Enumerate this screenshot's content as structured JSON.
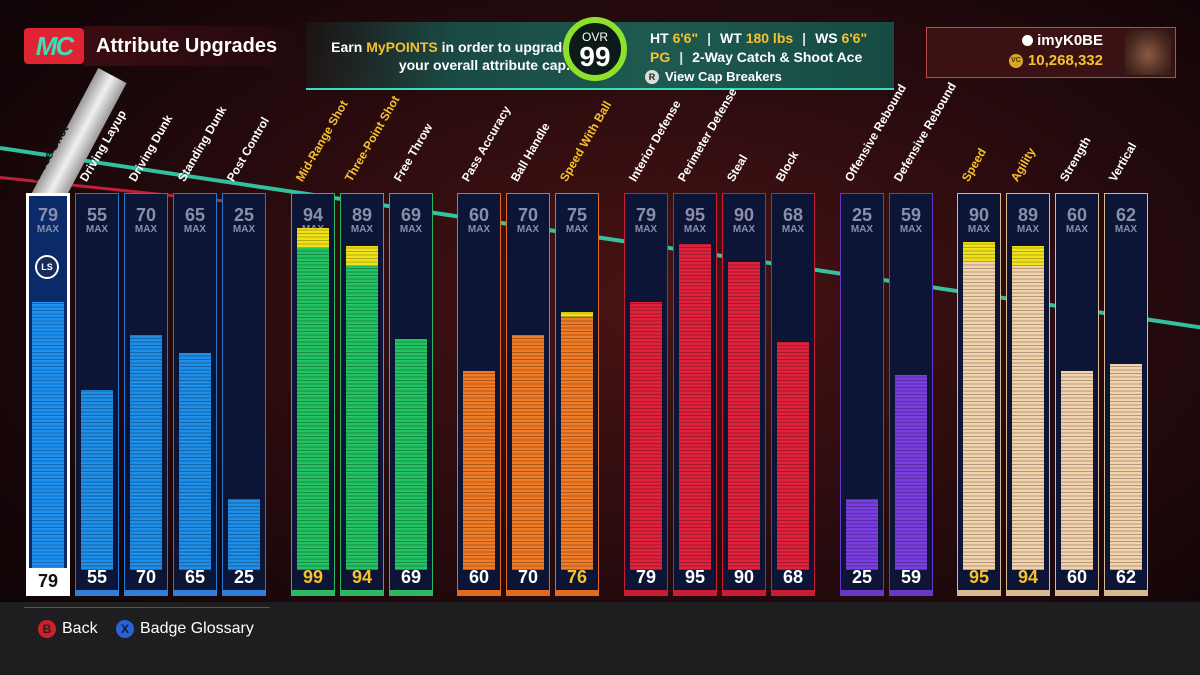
{
  "header": {
    "logo_text": "MC",
    "title": "Attribute Upgrades",
    "earn_line1_prefix": "Earn ",
    "earn_line1_highlight": "MyPOINTS",
    "earn_line1_suffix": " in order to upgrade",
    "earn_line2": "your overall attribute cap.",
    "ovr_label": "OVR",
    "ovr_value": "99",
    "ht_label": "HT",
    "ht_value": "6'6\"",
    "wt_label": "WT",
    "wt_value": "180 lbs",
    "ws_label": "WS",
    "ws_value": "6'6\"",
    "position": "PG",
    "archetype": "2-Way Catch & Shoot Ace",
    "cap_breakers_button": "R",
    "cap_breakers_label": "View Cap Breakers"
  },
  "profile": {
    "gamertag": "imyK0BE",
    "vc_icon": "VC",
    "vc_balance": "10,268,332"
  },
  "max_label": "MAX",
  "attributes": [
    {
      "name": "Close Shot",
      "cap": "79",
      "current": 79,
      "boost": 0,
      "group": "finishing",
      "selected": true,
      "badge": "LS"
    },
    {
      "name": "Driving Layup",
      "cap": "55",
      "current": 55,
      "boost": 0,
      "group": "finishing"
    },
    {
      "name": "Driving Dunk",
      "cap": "70",
      "current": 70,
      "boost": 0,
      "group": "finishing"
    },
    {
      "name": "Standing Dunk",
      "cap": "65",
      "current": 65,
      "boost": 0,
      "group": "finishing"
    },
    {
      "name": "Post Control",
      "cap": "25",
      "current": 25,
      "boost": 0,
      "group": "finishing"
    },
    {
      "name": "Mid-Range Shot",
      "cap": "94",
      "current": 99,
      "boost": 5,
      "group": "shooting",
      "highlight": true
    },
    {
      "name": "Three-Point Shot",
      "cap": "89",
      "current": 94,
      "boost": 5,
      "group": "shooting",
      "highlight": true
    },
    {
      "name": "Free Throw",
      "cap": "69",
      "current": 69,
      "boost": 0,
      "group": "shooting"
    },
    {
      "name": "Pass Accuracy",
      "cap": "60",
      "current": 60,
      "boost": 0,
      "group": "playmaking"
    },
    {
      "name": "Ball Handle",
      "cap": "70",
      "current": 70,
      "boost": 0,
      "group": "playmaking"
    },
    {
      "name": "Speed With Ball",
      "cap": "75",
      "current": 76,
      "boost": 1,
      "group": "playmaking",
      "highlight": true
    },
    {
      "name": "Interior Defense",
      "cap": "79",
      "current": 79,
      "boost": 0,
      "group": "defense"
    },
    {
      "name": "Perimeter Defense",
      "cap": "95",
      "current": 95,
      "boost": 0,
      "group": "defense"
    },
    {
      "name": "Steal",
      "cap": "90",
      "current": 90,
      "boost": 0,
      "group": "defense"
    },
    {
      "name": "Block",
      "cap": "68",
      "current": 68,
      "boost": 0,
      "group": "defense"
    },
    {
      "name": "Offensive Rebound",
      "cap": "25",
      "current": 25,
      "boost": 0,
      "group": "rebounding"
    },
    {
      "name": "Defensive Rebound",
      "cap": "59",
      "current": 59,
      "boost": 0,
      "group": "rebounding"
    },
    {
      "name": "Speed",
      "cap": "90",
      "current": 95,
      "boost": 5,
      "group": "physicals",
      "highlight": true
    },
    {
      "name": "Agility",
      "cap": "89",
      "current": 94,
      "boost": 5,
      "group": "physicals",
      "highlight": true
    },
    {
      "name": "Strength",
      "cap": "60",
      "current": 60,
      "boost": 0,
      "group": "physicals"
    },
    {
      "name": "Vertical",
      "cap": "62",
      "current": 62,
      "boost": 0,
      "group": "physicals"
    }
  ],
  "group_colors": {
    "finishing": {
      "fill": "#1e8ee8",
      "border": "#1e7ad8",
      "bottom": "#2f7fd8"
    },
    "shooting": {
      "fill": "#23c262",
      "border": "#2ab860",
      "bottom": "#2ab860"
    },
    "playmaking": {
      "fill": "#f07a26",
      "border": "#e06a22",
      "bottom": "#e06a22"
    },
    "defense": {
      "fill": "#e0223c",
      "border": "#c81e34",
      "bottom": "#c81e34"
    },
    "rebounding": {
      "fill": "#7a3ee0",
      "border": "#6a36c8",
      "bottom": "#6a36c8"
    },
    "physicals": {
      "fill": "#f4d2ac",
      "border": "#d8b890",
      "bottom": "#d8b890"
    }
  },
  "highlight_color": "#f5c12e",
  "footer": {
    "back_button": "B",
    "back_label": "Back",
    "glossary_button": "X",
    "glossary_label": "Badge Glossary"
  }
}
